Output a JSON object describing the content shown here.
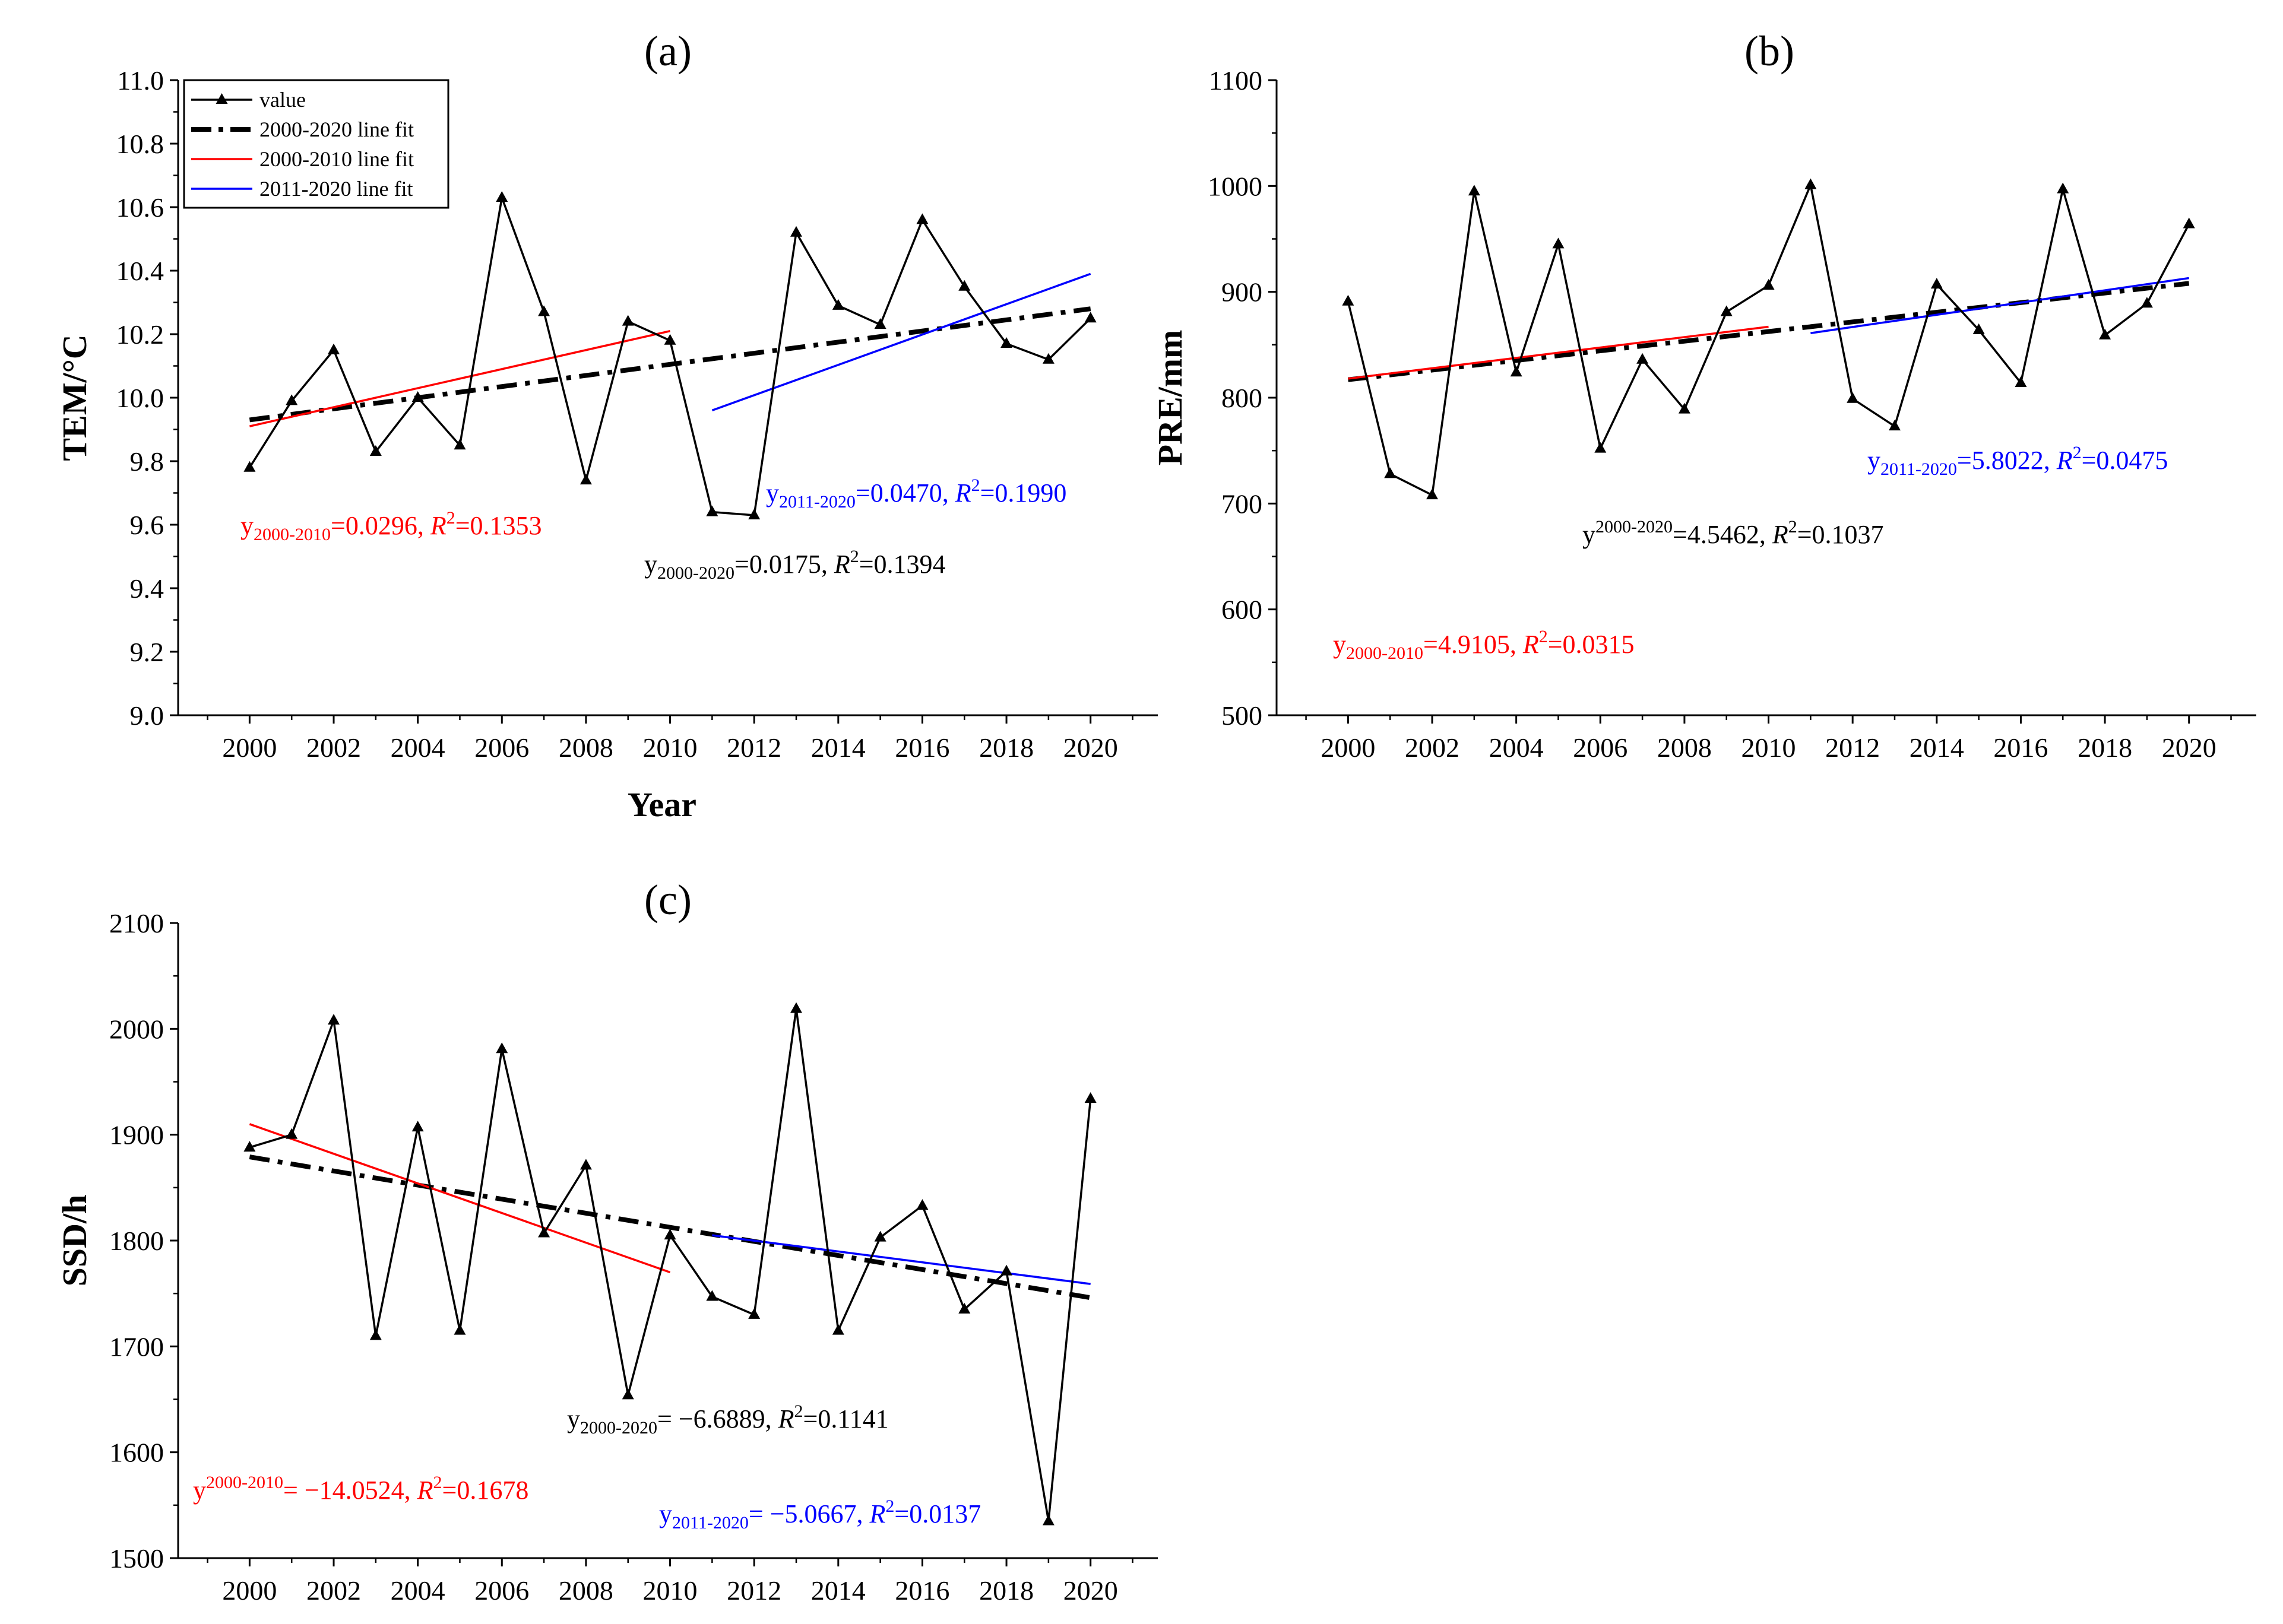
{
  "legend": {
    "items": [
      {
        "label": "value",
        "color": "#000000",
        "style": "marker-line"
      },
      {
        "label": "2000-2020 line fit",
        "color": "#000000",
        "style": "dashdot"
      },
      {
        "label": "2000-2010 line fit",
        "color": "#ff0000",
        "style": "solid"
      },
      {
        "label": "2011-2020 line fit",
        "color": "#0000ff",
        "style": "solid"
      }
    ]
  },
  "chart_data": [
    {
      "type": "line",
      "panel_label": "(a)",
      "xlabel": "Year",
      "ylabel": "TEM/°C",
      "x": [
        2000,
        2001,
        2002,
        2003,
        2004,
        2005,
        2006,
        2007,
        2008,
        2009,
        2010,
        2011,
        2012,
        2013,
        2014,
        2015,
        2016,
        2017,
        2018,
        2019,
        2020
      ],
      "xticks": [
        "2000",
        "2002",
        "2004",
        "2006",
        "2008",
        "2010",
        "2012",
        "2014",
        "2016",
        "2018",
        "2020"
      ],
      "ylim": [
        9.0,
        11.0
      ],
      "yticks": [
        "9.0",
        "9.2",
        "9.4",
        "9.6",
        "9.8",
        "10.0",
        "10.2",
        "10.4",
        "10.6",
        "10.8",
        "11.0"
      ],
      "series": [
        {
          "name": "value",
          "color": "#000000",
          "values": [
            9.78,
            9.99,
            10.15,
            9.83,
            10.0,
            9.85,
            10.63,
            10.27,
            9.74,
            10.24,
            10.18,
            9.64,
            9.63,
            10.52,
            10.29,
            10.23,
            10.56,
            10.35,
            10.17,
            10.12,
            10.25
          ]
        }
      ],
      "fits": [
        {
          "name": "2000-2020 line fit",
          "color": "#000000",
          "x": [
            2000,
            2020
          ],
          "y": [
            9.93,
            10.28
          ]
        },
        {
          "name": "2000-2010 line fit",
          "color": "#ff0000",
          "x": [
            2000,
            2010
          ],
          "y": [
            9.91,
            10.21
          ]
        },
        {
          "name": "2011-2020 line fit",
          "color": "#0000ff",
          "x": [
            2011,
            2020
          ],
          "y": [
            9.96,
            10.39
          ]
        }
      ],
      "annotations": [
        {
          "color": "#ff0000",
          "prefix": "y",
          "sub": "2000-2010",
          "sup": "",
          "value": "=0.0296, ",
          "r2": "=0.1353"
        },
        {
          "color": "#000000",
          "prefix": "y",
          "sub": "2000-2020",
          "sup": "",
          "value": "=0.0175, ",
          "r2": "=0.1394"
        },
        {
          "color": "#0000ff",
          "prefix": "y",
          "sub": "2011-2020",
          "sup": "",
          "value": "=0.0470, ",
          "r2": "=0.1990"
        }
      ]
    },
    {
      "type": "line",
      "panel_label": "(b)",
      "xlabel": "",
      "ylabel": "PRE/mm",
      "x": [
        2000,
        2001,
        2002,
        2003,
        2004,
        2005,
        2006,
        2007,
        2008,
        2009,
        2010,
        2011,
        2012,
        2013,
        2014,
        2015,
        2016,
        2017,
        2018,
        2019,
        2020
      ],
      "xticks": [
        "2000",
        "2002",
        "2004",
        "2006",
        "2008",
        "2010",
        "2012",
        "2014",
        "2016",
        "2018",
        "2020"
      ],
      "ylim": [
        500,
        1100
      ],
      "yticks": [
        "500",
        "600",
        "700",
        "800",
        "900",
        "1000",
        "1100"
      ],
      "series": [
        {
          "name": "value",
          "color": "#000000",
          "values": [
            891,
            728,
            708,
            995,
            824,
            945,
            752,
            836,
            789,
            881,
            906,
            1001,
            799,
            773,
            907,
            864,
            814,
            997,
            859,
            889,
            964
          ]
        }
      ],
      "fits": [
        {
          "name": "2000-2020 line fit",
          "color": "#000000",
          "x": [
            2000,
            2020
          ],
          "y": [
            817,
            908
          ]
        },
        {
          "name": "2000-2010 line fit",
          "color": "#ff0000",
          "x": [
            2000,
            2010
          ],
          "y": [
            818,
            867
          ]
        },
        {
          "name": "2011-2020 line fit",
          "color": "#0000ff",
          "x": [
            2011,
            2020
          ],
          "y": [
            861,
            913
          ]
        }
      ],
      "annotations": [
        {
          "color": "#0000ff",
          "prefix": "y",
          "sub": "2011-2020",
          "sup": "",
          "value": "=5.8022, ",
          "r2": "=0.0475"
        },
        {
          "color": "#000000",
          "prefix": "y",
          "sub": "",
          "sup": "2000-2020",
          "value": "=4.5462, ",
          "r2": "=0.1037"
        },
        {
          "color": "#ff0000",
          "prefix": "y",
          "sub": "2000-2010",
          "sup": "",
          "value": "=4.9105, ",
          "r2": "=0.0315"
        }
      ]
    },
    {
      "type": "line",
      "panel_label": "(c)",
      "xlabel": "",
      "ylabel": "SSD/h",
      "x": [
        2000,
        2001,
        2002,
        2003,
        2004,
        2005,
        2006,
        2007,
        2008,
        2009,
        2010,
        2011,
        2012,
        2013,
        2014,
        2015,
        2016,
        2017,
        2018,
        2019,
        2020
      ],
      "xticks": [
        "2000",
        "2002",
        "2004",
        "2006",
        "2008",
        "2010",
        "2012",
        "2014",
        "2016",
        "2018",
        "2020"
      ],
      "ylim": [
        1500,
        2100
      ],
      "yticks": [
        "1500",
        "1600",
        "1700",
        "1800",
        "1900",
        "2000",
        "2100"
      ],
      "series": [
        {
          "name": "value",
          "color": "#000000",
          "values": [
            1888,
            1900,
            2008,
            1710,
            1907,
            1715,
            1981,
            1807,
            1871,
            1654,
            1805,
            1747,
            1730,
            2019,
            1715,
            1803,
            1833,
            1735,
            1771,
            1535,
            1934
          ]
        }
      ],
      "fits": [
        {
          "name": "2000-2020 line fit",
          "color": "#000000",
          "x": [
            2000,
            2020
          ],
          "y": [
            1879,
            1746
          ]
        },
        {
          "name": "2000-2010 line fit",
          "color": "#ff0000",
          "x": [
            2000,
            2010
          ],
          "y": [
            1910,
            1770
          ]
        },
        {
          "name": "2011-2020 line fit",
          "color": "#0000ff",
          "x": [
            2011,
            2020
          ],
          "y": [
            1805,
            1759
          ]
        }
      ],
      "annotations": [
        {
          "color": "#000000",
          "prefix": "y",
          "sub": "2000-2020",
          "sup": "",
          "value": "= −6.6889, ",
          "r2": "=0.1141"
        },
        {
          "color": "#ff0000",
          "prefix": "y",
          "sub": "",
          "sup": "2000-2010",
          "value": "= −14.0524, ",
          "r2": "=0.1678"
        },
        {
          "color": "#0000ff",
          "prefix": "y",
          "sub": "2011-2020",
          "sup": "",
          "value": "= −5.0667, ",
          "r2": "=0.0137"
        }
      ]
    }
  ]
}
